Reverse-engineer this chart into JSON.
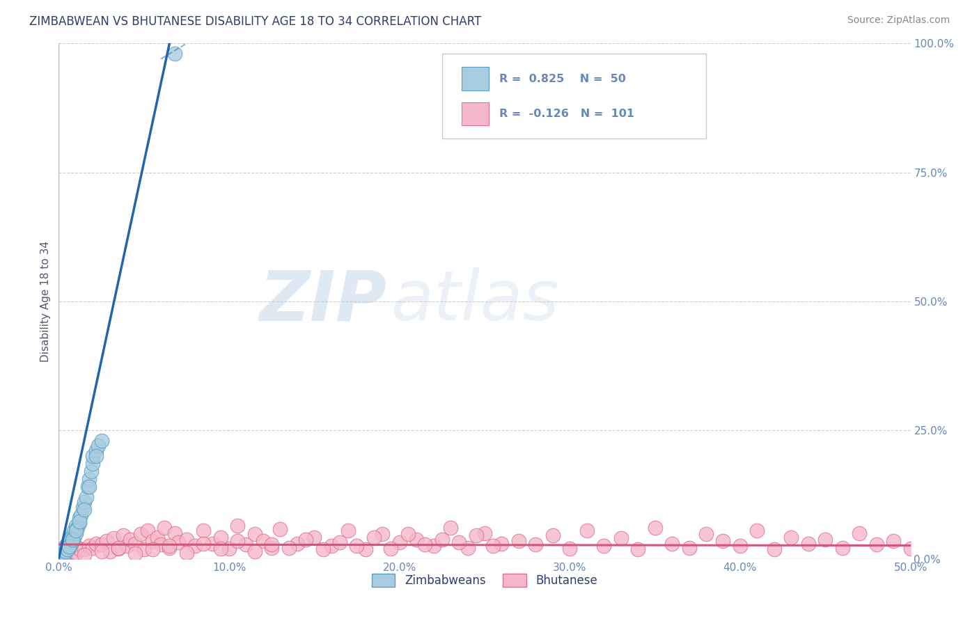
{
  "title": "ZIMBABWEAN VS BHUTANESE DISABILITY AGE 18 TO 34 CORRELATION CHART",
  "source_text": "Source: ZipAtlas.com",
  "ylabel": "Disability Age 18 to 34",
  "xmin": 0.0,
  "xmax": 0.5,
  "ymin": 0.0,
  "ymax": 1.0,
  "xticks": [
    0.0,
    0.1,
    0.2,
    0.3,
    0.4,
    0.5
  ],
  "yticks": [
    0.0,
    0.25,
    0.5,
    0.75,
    1.0
  ],
  "xtick_labels": [
    "0.0%",
    "10.0%",
    "20.0%",
    "30.0%",
    "40.0%",
    "50.0%"
  ],
  "ytick_labels": [
    "0.0%",
    "25.0%",
    "50.0%",
    "75.0%",
    "100.0%"
  ],
  "zim_color": "#a8cce0",
  "zim_edge_color": "#5a9fc0",
  "zim_line_color": "#2166ac",
  "bhu_color": "#f5b8cb",
  "bhu_edge_color": "#e07090",
  "bhu_line_color": "#d4547a",
  "R_zim": 0.825,
  "N_zim": 50,
  "R_bhu": -0.126,
  "N_bhu": 101,
  "legend_label_zim": "Zimbabweans",
  "legend_label_bhu": "Bhutanese",
  "watermark_zip": "ZIP",
  "watermark_atlas": "atlas",
  "background_color": "#ffffff",
  "grid_color": "#cccccc",
  "title_color": "#2c3e6b",
  "axis_label_color": "#555577",
  "tick_color": "#6688bb",
  "source_color": "#888888",
  "zim_trend_x0": 0.0,
  "zim_trend_y0": 0.0,
  "zim_trend_x1": 0.065,
  "zim_trend_y1": 1.0,
  "zim_trend_dash_x1": 0.075,
  "zim_trend_dash_y1": 1.0,
  "bhu_trend_slope": -0.004,
  "bhu_trend_intercept": 0.028,
  "zim_scatter_x": [
    0.001,
    0.002,
    0.002,
    0.003,
    0.003,
    0.003,
    0.004,
    0.004,
    0.005,
    0.005,
    0.005,
    0.006,
    0.006,
    0.006,
    0.007,
    0.007,
    0.008,
    0.008,
    0.009,
    0.009,
    0.01,
    0.01,
    0.011,
    0.012,
    0.012,
    0.013,
    0.014,
    0.015,
    0.016,
    0.017,
    0.018,
    0.019,
    0.02,
    0.02,
    0.022,
    0.023,
    0.025,
    0.001,
    0.002,
    0.003,
    0.004,
    0.005,
    0.006,
    0.008,
    0.01,
    0.012,
    0.015,
    0.018,
    0.022,
    0.068
  ],
  "zim_scatter_y": [
    0.005,
    0.008,
    0.012,
    0.01,
    0.015,
    0.02,
    0.018,
    0.025,
    0.02,
    0.025,
    0.03,
    0.022,
    0.028,
    0.035,
    0.03,
    0.04,
    0.035,
    0.045,
    0.04,
    0.055,
    0.05,
    0.065,
    0.06,
    0.07,
    0.08,
    0.085,
    0.1,
    0.11,
    0.12,
    0.14,
    0.155,
    0.17,
    0.185,
    0.2,
    0.21,
    0.22,
    0.23,
    0.003,
    0.006,
    0.008,
    0.014,
    0.018,
    0.024,
    0.038,
    0.055,
    0.072,
    0.095,
    0.14,
    0.2,
    0.98
  ],
  "bhu_scatter_x": [
    0.005,
    0.008,
    0.01,
    0.012,
    0.015,
    0.018,
    0.02,
    0.022,
    0.025,
    0.028,
    0.03,
    0.032,
    0.035,
    0.038,
    0.04,
    0.042,
    0.045,
    0.048,
    0.05,
    0.052,
    0.055,
    0.058,
    0.06,
    0.062,
    0.065,
    0.068,
    0.07,
    0.075,
    0.08,
    0.085,
    0.09,
    0.095,
    0.1,
    0.105,
    0.11,
    0.115,
    0.12,
    0.125,
    0.13,
    0.14,
    0.15,
    0.16,
    0.17,
    0.18,
    0.19,
    0.2,
    0.21,
    0.22,
    0.23,
    0.24,
    0.25,
    0.26,
    0.27,
    0.28,
    0.29,
    0.3,
    0.31,
    0.32,
    0.33,
    0.34,
    0.35,
    0.36,
    0.37,
    0.38,
    0.39,
    0.4,
    0.41,
    0.42,
    0.43,
    0.44,
    0.45,
    0.46,
    0.47,
    0.48,
    0.49,
    0.5,
    0.015,
    0.025,
    0.035,
    0.045,
    0.055,
    0.065,
    0.075,
    0.085,
    0.095,
    0.105,
    0.115,
    0.125,
    0.135,
    0.145,
    0.155,
    0.165,
    0.175,
    0.185,
    0.195,
    0.205,
    0.215,
    0.225,
    0.235,
    0.245,
    0.255
  ],
  "bhu_scatter_y": [
    0.01,
    0.015,
    0.012,
    0.02,
    0.018,
    0.025,
    0.022,
    0.03,
    0.028,
    0.035,
    0.015,
    0.04,
    0.02,
    0.045,
    0.025,
    0.038,
    0.03,
    0.048,
    0.018,
    0.055,
    0.035,
    0.042,
    0.028,
    0.06,
    0.022,
    0.05,
    0.032,
    0.038,
    0.025,
    0.055,
    0.03,
    0.042,
    0.02,
    0.065,
    0.028,
    0.048,
    0.035,
    0.022,
    0.058,
    0.03,
    0.042,
    0.025,
    0.055,
    0.018,
    0.048,
    0.032,
    0.038,
    0.025,
    0.06,
    0.022,
    0.05,
    0.03,
    0.035,
    0.028,
    0.045,
    0.02,
    0.055,
    0.025,
    0.04,
    0.018,
    0.06,
    0.03,
    0.022,
    0.048,
    0.035,
    0.025,
    0.055,
    0.018,
    0.042,
    0.03,
    0.038,
    0.022,
    0.05,
    0.028,
    0.035,
    0.02,
    0.008,
    0.015,
    0.022,
    0.01,
    0.018,
    0.025,
    0.012,
    0.03,
    0.02,
    0.035,
    0.015,
    0.028,
    0.022,
    0.038,
    0.018,
    0.032,
    0.025,
    0.042,
    0.02,
    0.048,
    0.028,
    0.038,
    0.032,
    0.045,
    0.025
  ]
}
